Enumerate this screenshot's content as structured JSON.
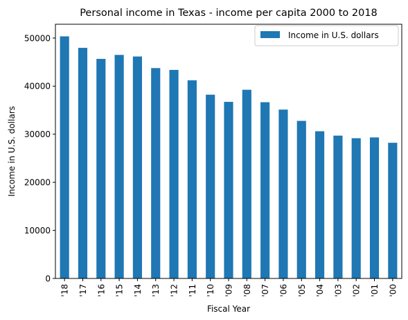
{
  "chart_data": {
    "type": "bar",
    "title": "Personal income in Texas - income per capita 2000 to 2018",
    "xlabel": "Fiscal Year",
    "ylabel": "Income in U.S. dollars",
    "categories": [
      "'18",
      "'17",
      "'16",
      "'15",
      "'14",
      "'13",
      "'12",
      "'11",
      "'10",
      "'09",
      "'08",
      "'07",
      "'06",
      "'05",
      "'04",
      "'03",
      "'02",
      "'01",
      "'00"
    ],
    "series": [
      {
        "name": "Income in U.S. dollars",
        "values": [
          50355,
          47962,
          45669,
          46496,
          46166,
          43756,
          43378,
          41215,
          38222,
          36732,
          39245,
          36658,
          35123,
          32772,
          30615,
          29710,
          29169,
          29333,
          28219
        ],
        "color": "#1f77b4"
      }
    ],
    "yticks": [
      0,
      10000,
      20000,
      30000,
      40000,
      50000
    ],
    "ylim": [
      0,
      52875
    ],
    "grid": false,
    "legend_position": "top-right"
  }
}
